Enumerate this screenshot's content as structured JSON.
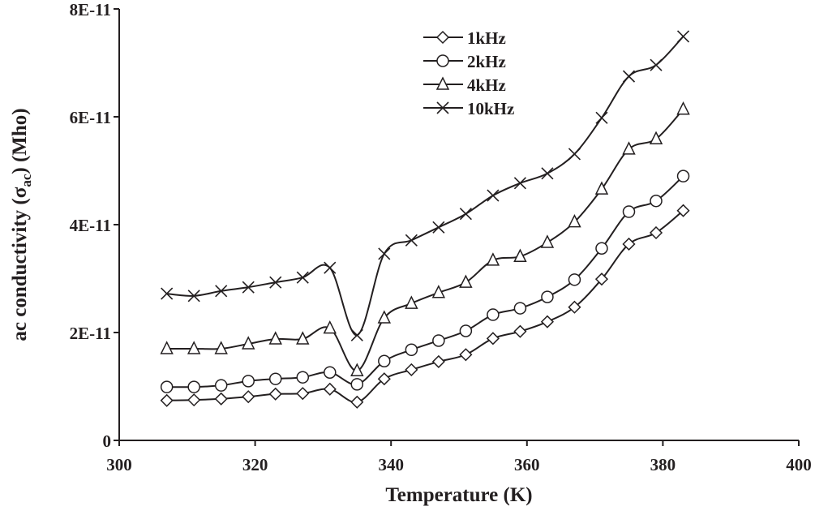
{
  "chart_data": {
    "type": "line",
    "title": "",
    "xlabel": "Temperature (K)",
    "ylabel_prefix": "ac conductivity (σ",
    "ylabel_sub": "ac",
    "ylabel_suffix": ") (Mho)",
    "xlim": [
      300,
      400
    ],
    "ylim": [
      0,
      8e-11
    ],
    "xticks": [
      300,
      320,
      340,
      360,
      380,
      400
    ],
    "xtick_labels": [
      "300",
      "320",
      "340",
      "360",
      "380",
      "400"
    ],
    "yticks": [
      0,
      2e-11,
      4e-11,
      6e-11,
      8e-11
    ],
    "ytick_labels": [
      "0",
      "2E-11",
      "4E-11",
      "6E-11",
      "8E-11"
    ],
    "grid": false,
    "legend_position": "top-center",
    "line_color": "#231f20",
    "x": [
      307,
      311,
      315,
      319,
      323,
      327,
      331,
      335,
      339,
      343,
      347,
      351,
      355,
      359,
      363,
      367,
      371,
      375,
      379,
      383
    ],
    "series": [
      {
        "name": "1kHz",
        "marker": "diamond",
        "values": [
          7.4e-12,
          7.5e-12,
          7.7e-12,
          8.1e-12,
          8.6e-12,
          8.7e-12,
          9.5e-12,
          7.1e-12,
          1.14e-11,
          1.31e-11,
          1.46e-11,
          1.59e-11,
          1.89e-11,
          2.02e-11,
          2.2e-11,
          2.47e-11,
          2.99e-11,
          3.64e-11,
          3.85e-11,
          4.26e-11
        ]
      },
      {
        "name": "2kHz",
        "marker": "circle",
        "values": [
          9.9e-12,
          9.9e-12,
          1.02e-11,
          1.1e-11,
          1.14e-11,
          1.17e-11,
          1.26e-11,
          1.04e-11,
          1.47e-11,
          1.68e-11,
          1.85e-11,
          2.03e-11,
          2.33e-11,
          2.45e-11,
          2.66e-11,
          2.98e-11,
          3.56e-11,
          4.24e-11,
          4.44e-11,
          4.9e-11
        ]
      },
      {
        "name": "4kHz",
        "marker": "triangle",
        "values": [
          1.7e-11,
          1.7e-11,
          1.7e-11,
          1.79e-11,
          1.88e-11,
          1.88e-11,
          2.08e-11,
          1.29e-11,
          2.27e-11,
          2.54e-11,
          2.74e-11,
          2.93e-11,
          3.34e-11,
          3.41e-11,
          3.67e-11,
          4.05e-11,
          4.66e-11,
          5.4e-11,
          5.59e-11,
          6.14e-11
        ]
      },
      {
        "name": "10kHz",
        "marker": "x",
        "values": [
          2.72e-11,
          2.68e-11,
          2.77e-11,
          2.84e-11,
          2.93e-11,
          3.02e-11,
          3.2e-11,
          1.95e-11,
          3.46e-11,
          3.71e-11,
          3.95e-11,
          4.2e-11,
          4.54e-11,
          4.77e-11,
          4.95e-11,
          5.31e-11,
          5.98e-11,
          6.75e-11,
          6.96e-11,
          7.49e-11
        ]
      }
    ]
  }
}
